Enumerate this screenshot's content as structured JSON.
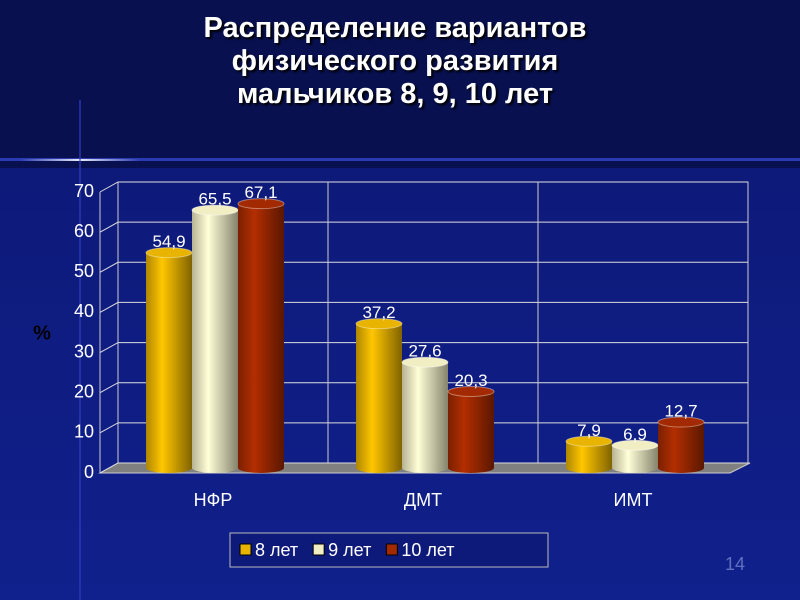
{
  "chart_data": {
    "type": "bar",
    "title": "Распределение вариантов\nфизического развития\nмальчиков 8, 9, 10 лет",
    "ylabel": "%",
    "categories": [
      "НФР",
      "ДМТ",
      "ИМТ"
    ],
    "series": [
      {
        "name": "8 лет",
        "color": "#e8b400",
        "values": [
          54.9,
          37.2,
          7.9
        ],
        "value_labels": [
          "54,9",
          "37,2",
          "7,9"
        ]
      },
      {
        "name": "9 лет",
        "color": "#f2eec4",
        "values": [
          65.5,
          27.6,
          6.9
        ],
        "value_labels": [
          "65,5",
          "27,6",
          "6,9"
        ]
      },
      {
        "name": "10 лет",
        "color": "#a32a00",
        "values": [
          67.1,
          20.3,
          12.7
        ],
        "value_labels": [
          "67,1",
          "20,3",
          "12,7"
        ]
      }
    ],
    "ylim": [
      0,
      70
    ],
    "yticks": [
      0,
      10,
      20,
      30,
      40,
      50,
      60,
      70
    ],
    "grid": true,
    "legend": "bottom"
  },
  "slide_number": "14"
}
